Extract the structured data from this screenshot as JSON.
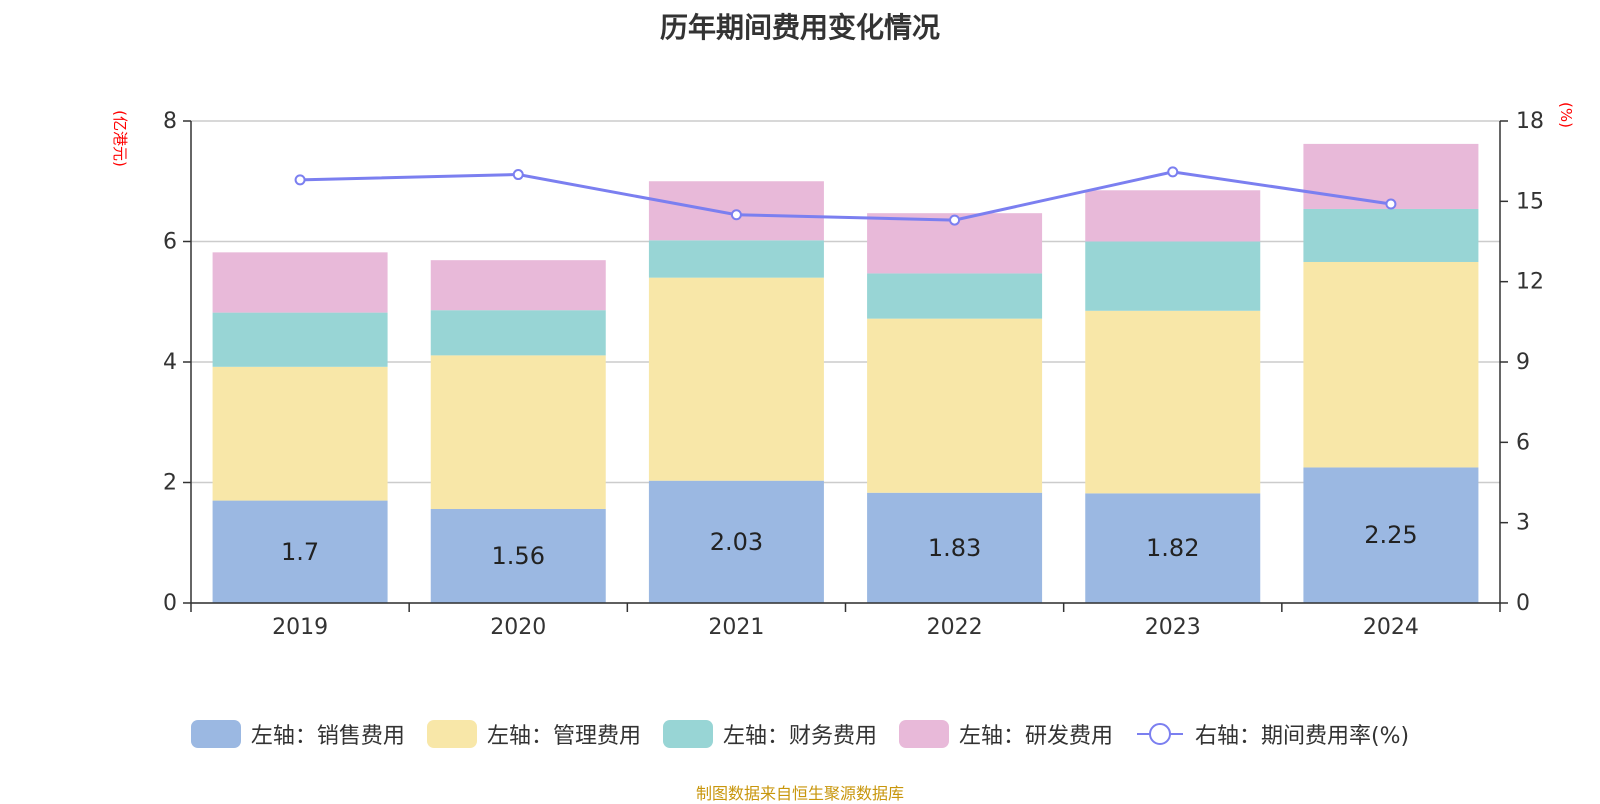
{
  "title": "历年期间费用变化情况",
  "left_unit": "(亿港元)",
  "right_unit": "(%)",
  "source": "制图数据来自恒生聚源数据库",
  "chart_data": {
    "type": "bar",
    "stacked": true,
    "categories": [
      "2019",
      "2020",
      "2021",
      "2022",
      "2023",
      "2024"
    ],
    "series": [
      {
        "name": "左轴：销售费用",
        "axis": "left",
        "color": "#9bb8e2",
        "values": [
          1.7,
          1.56,
          2.03,
          1.83,
          1.82,
          2.25
        ],
        "labels": [
          "1.7",
          "1.56",
          "2.03",
          "1.83",
          "1.82",
          "2.25"
        ]
      },
      {
        "name": "左轴：管理费用",
        "axis": "left",
        "color": "#f8e7a8",
        "values": [
          2.22,
          2.55,
          3.37,
          2.89,
          3.03,
          3.41
        ]
      },
      {
        "name": "左轴：财务费用",
        "axis": "left",
        "color": "#98d5d5",
        "values": [
          0.9,
          0.75,
          0.62,
          0.75,
          1.15,
          0.88
        ]
      },
      {
        "name": "左轴：研发费用",
        "axis": "left",
        "color": "#e8b9d9",
        "values": [
          1.0,
          0.83,
          0.98,
          1.0,
          0.85,
          1.08
        ]
      },
      {
        "name": "右轴：期间费用率(%)",
        "axis": "right",
        "type": "line",
        "color": "#7b7ff0",
        "values": [
          15.8,
          16.0,
          14.5,
          14.3,
          16.1,
          14.9
        ]
      }
    ],
    "y_left": {
      "min": 0,
      "max": 8,
      "ticks": [
        "0",
        "2",
        "4",
        "6",
        "8"
      ]
    },
    "y_right": {
      "min": 0,
      "max": 18,
      "ticks": [
        "0",
        "3",
        "6",
        "9",
        "12",
        "15",
        "18"
      ]
    },
    "grid": true,
    "legend_position": "bottom"
  }
}
